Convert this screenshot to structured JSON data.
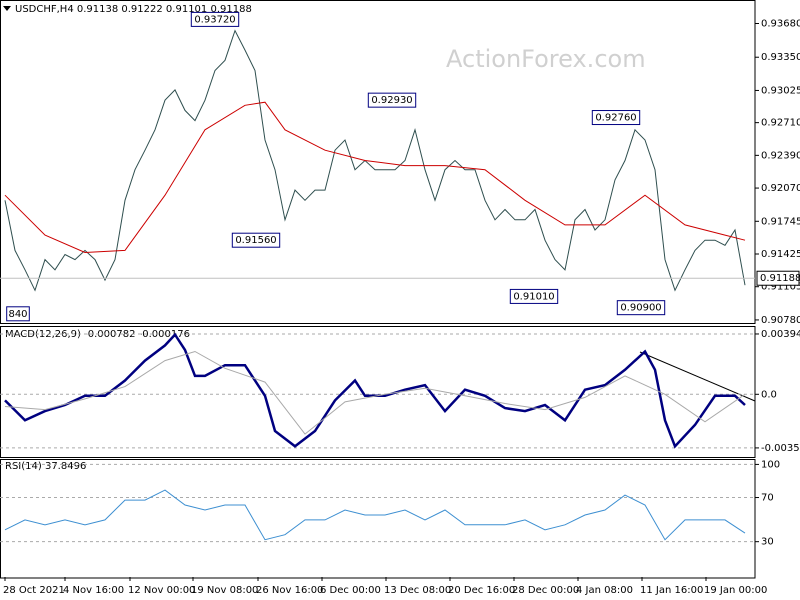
{
  "chart_data": [
    {
      "type": "line",
      "title": "USDCHF,H4  0.91138 0.91222 0.91101 0.91188",
      "watermark": "ActionForex.com",
      "xlim": [
        -0.5,
        75
      ],
      "ylim": [
        0.9075,
        0.939
      ],
      "yticks": [
        {
          "value": 0.9368,
          "label": "0.93680"
        },
        {
          "value": 0.9335,
          "label": "0.93350"
        },
        0.93025,
        {
          "value": 0.9271,
          "label": "0.92710"
        },
        {
          "value": 0.9239,
          "label": "0.92390"
        },
        {
          "value": 0.9207,
          "label": "0.92070"
        },
        0.91745,
        0.91425,
        0.91105,
        {
          "value": 0.9078,
          "label": "0.90780"
        }
      ],
      "last": 0.91188,
      "series": [
        {
          "color": "#2f4f4f",
          "x": [
            0,
            1,
            2,
            3,
            4,
            5,
            6,
            7,
            8,
            9,
            10,
            11,
            12,
            13,
            14,
            15,
            16,
            17,
            18,
            19,
            20,
            21,
            22,
            23,
            24,
            25,
            26,
            27,
            28,
            29,
            30,
            31,
            32,
            33,
            34,
            35,
            36,
            37,
            38,
            39,
            40,
            41,
            42,
            43,
            44,
            45,
            46,
            47,
            48,
            49,
            50,
            51,
            52,
            53,
            54,
            55,
            56,
            57,
            58,
            59,
            60,
            61,
            62,
            63,
            64,
            65,
            66,
            67,
            68,
            69,
            70,
            71,
            72,
            73,
            74
          ],
          "values": [
            0.9195,
            0.9146,
            0.9127,
            0.9107,
            0.9137,
            0.9127,
            0.9142,
            0.9137,
            0.9146,
            0.9137,
            0.9117,
            0.9137,
            0.9195,
            0.9225,
            0.9244,
            0.9264,
            0.9293,
            0.9303,
            0.9283,
            0.9273,
            0.9293,
            0.9322,
            0.9332,
            0.9361,
            0.9342,
            0.9322,
            0.9254,
            0.9225,
            0.9176,
            0.9205,
            0.9195,
            0.9205,
            0.9205,
            0.9244,
            0.9254,
            0.9225,
            0.9234,
            0.9225,
            0.9225,
            0.9225,
            0.9234,
            0.9264,
            0.9225,
            0.9195,
            0.9225,
            0.9234,
            0.9225,
            0.9225,
            0.9195,
            0.9176,
            0.9186,
            0.9176,
            0.9176,
            0.9186,
            0.9156,
            0.9137,
            0.9127,
            0.9176,
            0.9186,
            0.9166,
            0.9176,
            0.9215,
            0.9234,
            0.9264,
            0.9254,
            0.9225,
            0.9137,
            0.9107,
            0.9127,
            0.9146,
            0.9156,
            0.9156,
            0.9151,
            0.9166,
            0.9112
          ]
        },
        {
          "color": "#cc0000",
          "x": [
            0,
            4,
            8,
            12,
            16,
            20,
            24,
            26,
            28,
            32,
            36,
            40,
            44,
            48,
            52,
            56,
            60,
            64,
            68,
            72,
            74
          ],
          "values": [
            0.92,
            0.9161,
            0.9144,
            0.9146,
            0.92,
            0.9264,
            0.9288,
            0.9291,
            0.9264,
            0.9244,
            0.9234,
            0.9229,
            0.9229,
            0.9225,
            0.9195,
            0.9171,
            0.9171,
            0.92,
            0.9171,
            0.9161,
            0.9156
          ]
        }
      ],
      "annotations": [
        {
          "label": "0.93720",
          "value": 0.9372,
          "x": 21
        },
        {
          "label": "0.91560",
          "value": 0.9156,
          "x": 25.1
        },
        {
          "label": "0.92930",
          "value": 0.9293,
          "x": 38.7
        },
        {
          "label": "0.91010",
          "value": 0.9101,
          "x": 52.9
        },
        {
          "label": "0.92760",
          "value": 0.9276,
          "x": 61.1
        },
        {
          "label": "0.90900",
          "value": 0.909,
          "x": 63.6
        },
        {
          "label": "840",
          "value": 0.9084,
          "x": 1.3
        }
      ]
    },
    {
      "type": "line",
      "title": "MACD(12,26,9) -0.000782 -0.000176",
      "xlim": [
        -0.5,
        75
      ],
      "ylim": [
        -0.0041,
        0.0044
      ],
      "grid": true,
      "yticks": [
        0.003944,
        {
          "value": 0,
          "label": "0.0"
        },
        -0.003506
      ],
      "series": [
        {
          "color": "#000080",
          "width": 2.5,
          "x": [
            0,
            2,
            4,
            6,
            8,
            10,
            12,
            14,
            16,
            17,
            18,
            19,
            20,
            22,
            24,
            26,
            27,
            29,
            31,
            33,
            35,
            36,
            38,
            40,
            42,
            44,
            46,
            48,
            50,
            52,
            54,
            56,
            58,
            60,
            62,
            64,
            65,
            66,
            67,
            69,
            71,
            73,
            74
          ],
          "values": [
            -0.0004,
            -0.0017,
            -0.0011,
            -0.0007,
            -0.0001,
            -0.0001,
            0.0009,
            0.0022,
            0.0032,
            0.0039,
            0.0029,
            0.0012,
            0.0012,
            0.0019,
            0.0019,
            -0.0001,
            -0.0024,
            -0.0034,
            -0.0024,
            -0.0004,
            0.0009,
            -0.0001,
            -0.0001,
            0.0003,
            0.0006,
            -0.0011,
            0.0003,
            -0.0001,
            -0.0009,
            -0.0011,
            -0.0007,
            -0.0017,
            0.0003,
            0.0006,
            0.0016,
            0.0028,
            0.0016,
            -0.0017,
            -0.0034,
            -0.002,
            -0.0001,
            -0.0001,
            -0.0007
          ]
        },
        {
          "color": "#a9a9a9",
          "width": 1,
          "x": [
            0,
            4,
            8,
            12,
            16,
            19,
            22,
            26,
            30,
            34,
            38,
            42,
            46,
            50,
            54,
            58,
            62,
            66,
            70,
            74
          ],
          "values": [
            -0.0008,
            -0.001,
            -0.0003,
            0.0005,
            0.0022,
            0.0028,
            0.0017,
            0.0008,
            -0.0026,
            -0.0005,
            0,
            0.0004,
            -0.0001,
            -0.0006,
            -0.001,
            -0.0002,
            0.0012,
            0,
            -0.0018,
            0
          ]
        }
      ]
    },
    {
      "type": "line",
      "title": "RSI(14) 37.8496",
      "xlim": [
        -0.5,
        75
      ],
      "ylim": [
        -2,
        104
      ],
      "grid": true,
      "yticks": [
        100,
        70,
        30
      ],
      "xticks": [
        {
          "value": 0,
          "label": "28 Oct 2021"
        },
        {
          "value": 6,
          "label": "4 Nov 16:00"
        },
        {
          "value": 12.5,
          "label": "12 Nov 00:00"
        },
        {
          "value": 18.8,
          "label": "19 Nov 08:00"
        },
        {
          "value": 25.3,
          "label": "26 Nov 16:00"
        },
        {
          "value": 31.7,
          "label": "6 Dec 00:00"
        },
        {
          "value": 38.1,
          "label": "13 Dec 08:00"
        },
        {
          "value": 44.5,
          "label": "20 Dec 16:00"
        },
        {
          "value": 50.9,
          "label": "28 Dec 00:00"
        },
        {
          "value": 57.3,
          "label": "4 Jan 08:00"
        },
        {
          "value": 63.7,
          "label": "11 Jan 16:00"
        },
        {
          "value": 70.1,
          "label": "19 Jan 00:00"
        }
      ],
      "series": [
        {
          "color": "#3d8fd1",
          "width": 1,
          "x": [
            0,
            2,
            4,
            6,
            8,
            10,
            12,
            14,
            16,
            18,
            20,
            22,
            24,
            26,
            28,
            30,
            32,
            34,
            36,
            38,
            40,
            42,
            44,
            46,
            48,
            50,
            52,
            54,
            56,
            58,
            60,
            62,
            64,
            66,
            68,
            70,
            72,
            74
          ],
          "values": [
            40.8,
            49.7,
            45.3,
            49.7,
            45.3,
            49.7,
            67.7,
            67.7,
            76.7,
            63.2,
            58.7,
            63.2,
            63.2,
            31.8,
            36.3,
            49.7,
            49.7,
            58.7,
            54.2,
            54.2,
            58.7,
            49.7,
            58.7,
            45.3,
            45.3,
            45.3,
            49.7,
            40.8,
            45.3,
            54.2,
            58.7,
            72.2,
            63.2,
            31.8,
            49.7,
            49.7,
            49.7,
            37.8
          ]
        }
      ]
    }
  ]
}
